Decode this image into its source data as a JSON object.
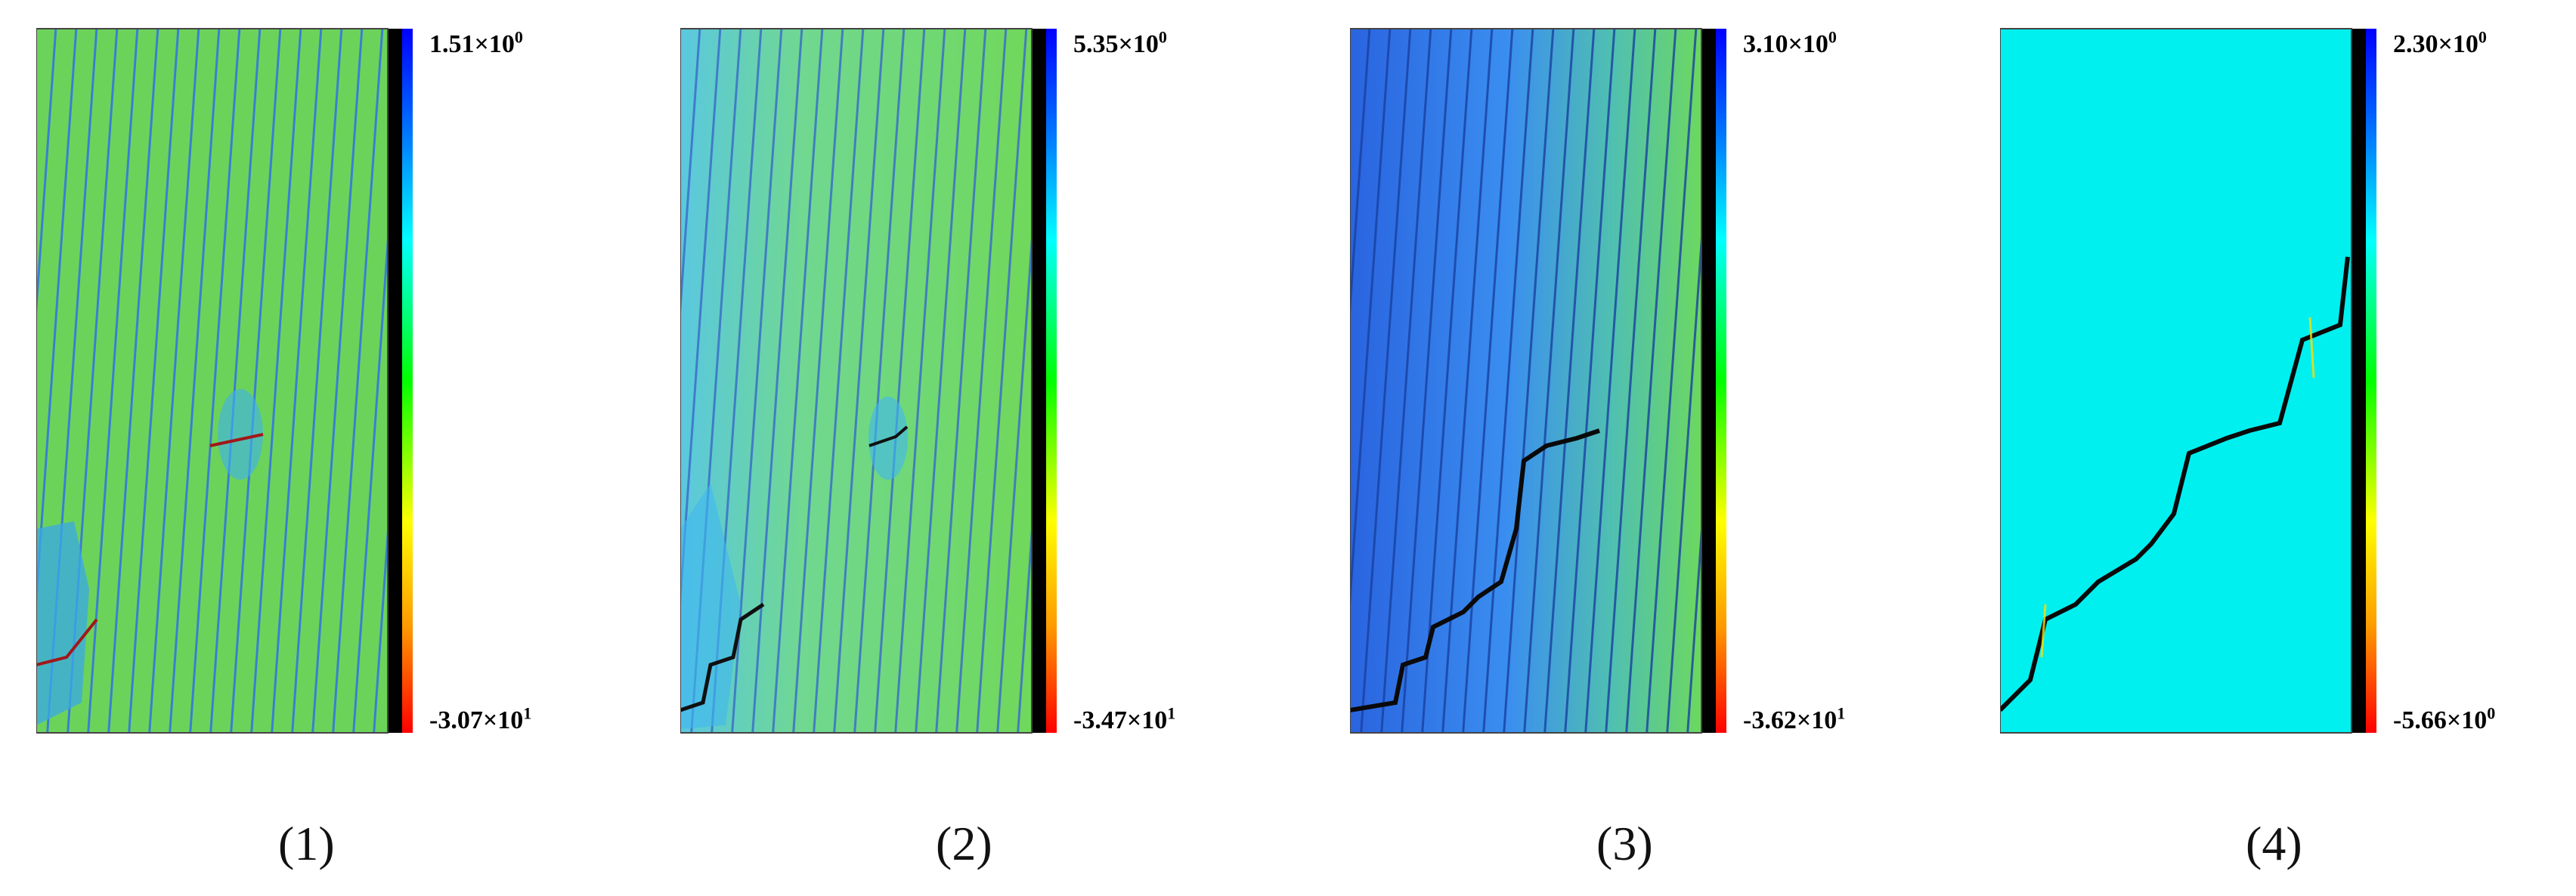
{
  "panels": [
    {
      "caption": "(1)",
      "max_mantissa": "1.51",
      "max_exp": "0",
      "min_mantissa": "-3.07",
      "min_exp": "1",
      "background": "green-stripes"
    },
    {
      "caption": "(2)",
      "max_mantissa": "5.35",
      "max_exp": "0",
      "min_mantissa": "-3.47",
      "min_exp": "1",
      "background": "green-cyan-stripes"
    },
    {
      "caption": "(3)",
      "max_mantissa": "3.10",
      "max_exp": "0",
      "min_mantissa": "-3.62",
      "min_exp": "1",
      "background": "blue-green-stripes"
    },
    {
      "caption": "(4)",
      "max_mantissa": "2.30",
      "max_exp": "0",
      "min_mantissa": "-5.66",
      "min_exp": "0",
      "background": "cyan-uniform"
    }
  ],
  "times_symbol": "×10",
  "colorbar_colors": [
    "#0000ff",
    "#0066ff",
    "#00ffff",
    "#00ff00",
    "#ffff00",
    "#ff8800",
    "#ff0000"
  ]
}
